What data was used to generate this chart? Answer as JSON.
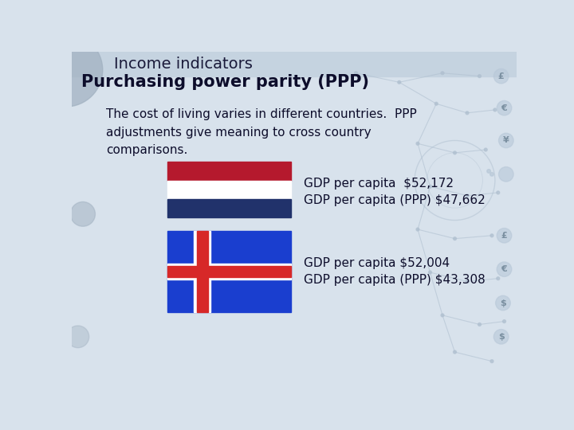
{
  "title": "Income indicators",
  "subtitle": "Purchasing power parity (PPP)",
  "body_text": "The cost of living varies in different countries.  PPP\nadjustments give meaning to cross country\ncomparisons.",
  "country1_label1": "GDP per capita  $52,172",
  "country1_label2": "GDP per capita (PPP) $47,662",
  "country2_label1": "GDP per capita $52,004",
  "country2_label2": "GDP per capita (PPP) $43,308",
  "bg_color": "#d8e2ec",
  "header_color": "#c5d3e0",
  "netherlands_red": "#b5192d",
  "netherlands_white": "#ffffff",
  "netherlands_blue": "#21326b",
  "iceland_blue": "#1a3ecf",
  "iceland_red": "#d72828",
  "title_color": "#1a1a3a",
  "subtitle_color": "#0d0d2b",
  "text_color": "#0d0d2b",
  "circle_gray": "#a0b0c0",
  "deco_line_color": "#b0c0d0",
  "currency_circle_color": "#b8c8d8",
  "currency_text_color": "#7a8fa0"
}
